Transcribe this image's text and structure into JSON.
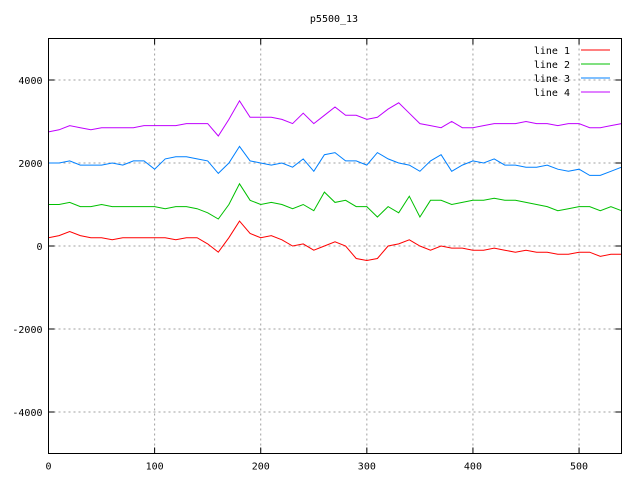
{
  "chart_data": {
    "type": "line",
    "title": "p5500_13",
    "xlabel": "",
    "ylabel": "",
    "xlim": [
      0,
      540
    ],
    "ylim": [
      -5000,
      5000
    ],
    "xticks": [
      "0",
      "100",
      "200",
      "300",
      "400",
      "500"
    ],
    "yticks": [
      "-4000",
      "-2000",
      "0",
      "2000",
      "4000"
    ],
    "grid": true,
    "legend_position": "top-right",
    "x": [
      0,
      10,
      20,
      30,
      40,
      50,
      60,
      70,
      80,
      90,
      100,
      110,
      120,
      130,
      140,
      150,
      160,
      170,
      180,
      190,
      200,
      210,
      220,
      230,
      240,
      250,
      260,
      270,
      280,
      290,
      300,
      310,
      320,
      330,
      340,
      350,
      360,
      370,
      380,
      390,
      400,
      410,
      420,
      430,
      440,
      450,
      460,
      470,
      480,
      490,
      500,
      510,
      520,
      530,
      540
    ],
    "series": [
      {
        "name": "line 1",
        "color": "#ff0000",
        "values": [
          200,
          250,
          350,
          250,
          200,
          200,
          150,
          200,
          200,
          200,
          200,
          200,
          150,
          200,
          200,
          50,
          -150,
          200,
          600,
          300,
          200,
          250,
          150,
          0,
          50,
          -100,
          0,
          100,
          0,
          -300,
          -350,
          -300,
          0,
          50,
          150,
          0,
          -100,
          0,
          -50,
          -50,
          -100,
          -100,
          -50,
          -100,
          -150,
          -100,
          -150,
          -150,
          -200,
          -200,
          -150,
          -150,
          -250,
          -200,
          -200
        ]
      },
      {
        "name": "line 2",
        "color": "#00c000",
        "values": [
          1000,
          1000,
          1050,
          950,
          950,
          1000,
          950,
          950,
          950,
          950,
          950,
          900,
          950,
          950,
          900,
          800,
          650,
          1000,
          1500,
          1100,
          1000,
          1050,
          1000,
          900,
          1000,
          850,
          1300,
          1050,
          1100,
          950,
          950,
          700,
          950,
          800,
          1200,
          700,
          1100,
          1100,
          1000,
          1050,
          1100,
          1100,
          1150,
          1100,
          1100,
          1050,
          1000,
          950,
          850,
          900,
          950,
          950,
          850,
          950,
          850
        ]
      },
      {
        "name": "line 3",
        "color": "#0080ff",
        "values": [
          2000,
          2000,
          2050,
          1950,
          1950,
          1950,
          2000,
          1950,
          2050,
          2050,
          1850,
          2100,
          2150,
          2150,
          2100,
          2050,
          1750,
          2000,
          2400,
          2050,
          2000,
          1950,
          2000,
          1900,
          2100,
          1800,
          2200,
          2250,
          2050,
          2050,
          1950,
          2250,
          2100,
          2000,
          1950,
          1800,
          2050,
          2200,
          1800,
          1950,
          2050,
          2000,
          2100,
          1950,
          1950,
          1900,
          1900,
          1950,
          1850,
          1800,
          1850,
          1700,
          1700,
          1800,
          1900
        ]
      },
      {
        "name": "line 4",
        "color": "#c000ff",
        "values": [
          2750,
          2800,
          2900,
          2850,
          2800,
          2850,
          2850,
          2850,
          2850,
          2900,
          2900,
          2900,
          2900,
          2950,
          2950,
          2950,
          2650,
          3050,
          3500,
          3100,
          3100,
          3100,
          3050,
          2950,
          3200,
          2950,
          3150,
          3350,
          3150,
          3150,
          3050,
          3100,
          3300,
          3450,
          3200,
          2950,
          2900,
          2850,
          3000,
          2850,
          2850,
          2900,
          2950,
          2950,
          2950,
          3000,
          2950,
          2950,
          2900,
          2950,
          2950,
          2850,
          2850,
          2900,
          2950
        ]
      }
    ]
  }
}
